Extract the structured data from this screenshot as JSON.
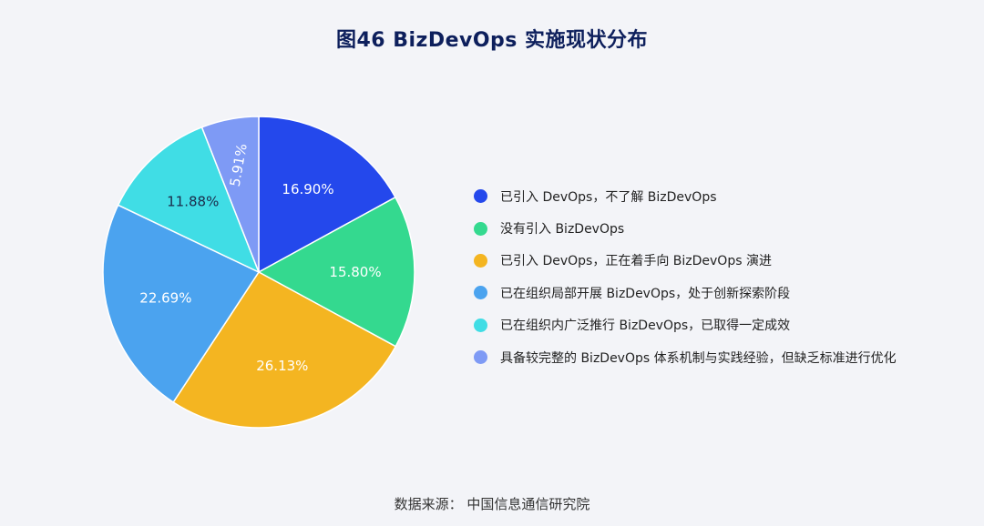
{
  "title": "图46 BizDevOps 实施现状分布",
  "source": "数据来源：  中国信息通信研究院",
  "chart_data": {
    "type": "pie",
    "title": "图46 BizDevOps 实施现状分布",
    "legend_position": "right",
    "start_angle_deg": 0,
    "direction": "clockwise",
    "slices": [
      {
        "label": "已引入 DevOps，不了解 BizDevOps",
        "value": 16.9,
        "value_label": "16.90%",
        "color": "#2448ec",
        "label_color": "#ffffff"
      },
      {
        "label": "没有引入 BizDevOps",
        "value": 15.8,
        "value_label": "15.80%",
        "color": "#34d98f",
        "label_color": "#ffffff"
      },
      {
        "label": "已引入 DevOps，正在着手向 BizDevOps 演进",
        "value": 26.13,
        "value_label": "26.13%",
        "color": "#f4b521",
        "label_color": "#ffffff"
      },
      {
        "label": "已在组织局部开展 BizDevOps，处于创新探索阶段",
        "value": 22.69,
        "value_label": "22.69%",
        "color": "#4ba3ef",
        "label_color": "#ffffff"
      },
      {
        "label": "已在组织内广泛推行 BizDevOps，已取得一定成效",
        "value": 11.88,
        "value_label": "11.88%",
        "color": "#40dde5",
        "label_color": "#1b2b4a"
      },
      {
        "label": "具备较完整的 BizDevOps 体系机制与实践经验，但缺乏标准进行优化",
        "value": 5.91,
        "value_label": "5.91%",
        "color": "#7e9af5",
        "label_color": "#ffffff"
      }
    ]
  }
}
